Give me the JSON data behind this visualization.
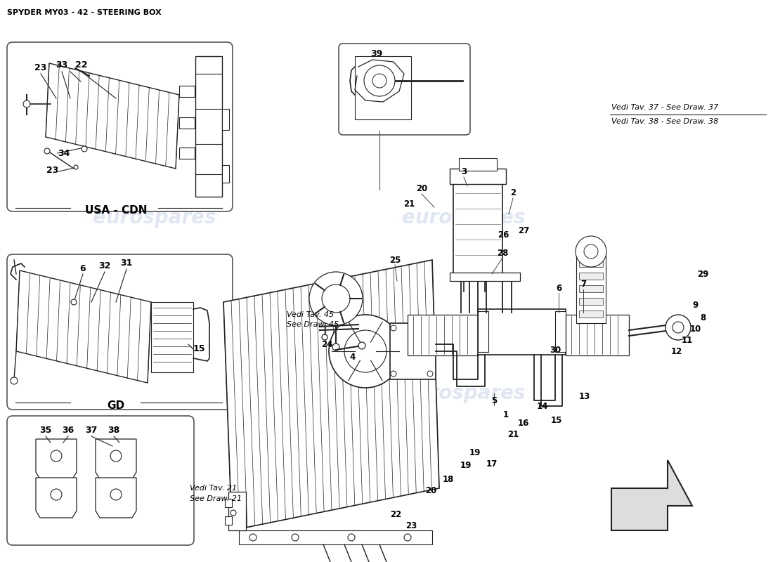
{
  "title": "SPYDER MY03 - 42 - STEERING BOX",
  "bg_color": "#ffffff",
  "line_color": "#222222",
  "text_color": "#000000",
  "wm_color": "#c8d4e8",
  "ref1": "Vedi Tav. 37 - See Draw. 37",
  "ref2": "Vedi Tav. 38 - See Draw. 38",
  "ref3a": "Vedi Tav. 45",
  "ref3b": "See Draw. 45",
  "ref4a": "Vedi Tav. 21",
  "ref4b": "See Draw. 21",
  "label_usa": "USA - CDN",
  "label_gd": "GD",
  "figsize": [
    11.0,
    8.0
  ],
  "dpi": 100
}
